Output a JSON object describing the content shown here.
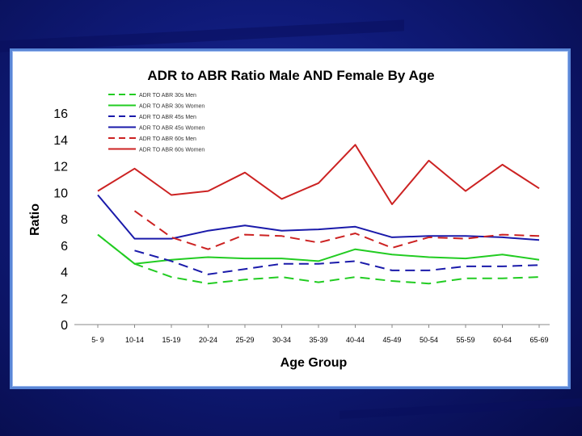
{
  "chart_data": {
    "type": "line",
    "title": "ADR to ABR Ratio Male AND Female By Age",
    "xlabel": "Age Group",
    "ylabel": "Ratio",
    "ylim": [
      0,
      16
    ],
    "yticks": [
      0,
      2,
      4,
      6,
      8,
      10,
      12,
      14,
      16
    ],
    "categories": [
      "5- 9",
      "10-14",
      "15-19",
      "20-24",
      "25-29",
      "30-34",
      "35-39",
      "40-44",
      "45-49",
      "50-54",
      "55-59",
      "60-64",
      "65-69"
    ],
    "legend_position": "top-left",
    "series": [
      {
        "name": "ADR TO ABR 30s Men",
        "color": "#22cc22",
        "dashed": true,
        "values": [
          6.8,
          4.6,
          3.6,
          3.1,
          3.4,
          3.6,
          3.2,
          3.6,
          3.3,
          3.1,
          3.5,
          3.5,
          3.6
        ]
      },
      {
        "name": "ADR TO ABR 30s Women",
        "color": "#22cc22",
        "dashed": false,
        "values": [
          6.8,
          4.6,
          4.9,
          5.1,
          5.0,
          5.0,
          4.8,
          5.7,
          5.3,
          5.1,
          5.0,
          5.3,
          4.9
        ]
      },
      {
        "name": "ADR TO ABR 45s Men",
        "color": "#1a1aaa",
        "dashed": true,
        "values": [
          null,
          5.6,
          4.8,
          3.8,
          4.2,
          4.6,
          4.6,
          4.8,
          4.1,
          4.1,
          4.4,
          4.4,
          4.5
        ]
      },
      {
        "name": "ADR TO ABR 45s Women",
        "color": "#1a1aaa",
        "dashed": false,
        "values": [
          9.8,
          6.5,
          6.5,
          7.1,
          7.5,
          7.1,
          7.2,
          7.4,
          6.6,
          6.7,
          6.7,
          6.6,
          6.4
        ]
      },
      {
        "name": "ADR TO ABR 60s Men",
        "color": "#cc2222",
        "dashed": true,
        "values": [
          null,
          8.6,
          6.6,
          5.7,
          6.8,
          6.7,
          6.2,
          6.9,
          5.8,
          6.6,
          6.5,
          6.8,
          6.7
        ]
      },
      {
        "name": "ADR TO ABR 60s Women",
        "color": "#cc2222",
        "dashed": false,
        "values": [
          10.1,
          11.8,
          9.8,
          10.1,
          11.5,
          9.5,
          10.7,
          13.6,
          9.1,
          12.4,
          10.1,
          12.1,
          10.3
        ]
      }
    ]
  }
}
